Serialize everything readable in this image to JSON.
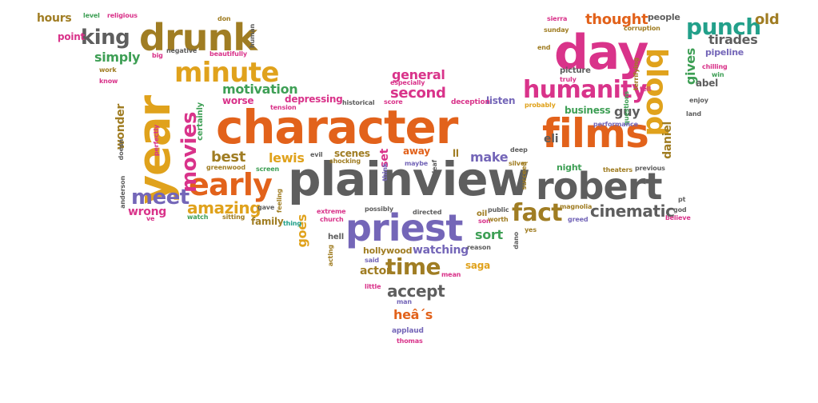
{
  "palette": {
    "orange": "#E2621B",
    "grey": "#5E5E5E",
    "purple": "#7466B8",
    "olive": "#A07D23",
    "magenta": "#D9338A",
    "green": "#3E9F55",
    "gold": "#E0A21C",
    "teal": "#22A08A"
  },
  "words": [
    {
      "text": "character",
      "color": "orange"
    },
    {
      "text": "plainview",
      "color": "grey"
    },
    {
      "text": "robert",
      "color": "grey"
    },
    {
      "text": "films",
      "color": "orange"
    },
    {
      "text": "day",
      "color": "magenta"
    },
    {
      "text": "priest",
      "color": "purple"
    },
    {
      "text": "year",
      "color": "gold"
    },
    {
      "text": "drunk",
      "color": "olive"
    },
    {
      "text": "blood",
      "color": "gold"
    },
    {
      "text": "minute",
      "color": "gold"
    },
    {
      "text": "early",
      "color": "orange"
    },
    {
      "text": "humanity",
      "color": "magenta"
    },
    {
      "text": "punch",
      "color": "teal"
    },
    {
      "text": "fact",
      "color": "olive"
    },
    {
      "text": "movies",
      "color": "magenta"
    },
    {
      "text": "king",
      "color": "grey"
    },
    {
      "text": "time",
      "color": "olive"
    },
    {
      "text": "meet",
      "color": "purple"
    },
    {
      "text": "thought",
      "color": "orange"
    },
    {
      "text": "amazing",
      "color": "gold"
    },
    {
      "text": "cinematic",
      "color": "grey"
    },
    {
      "text": "general",
      "color": "magenta"
    },
    {
      "text": "second",
      "color": "magenta"
    },
    {
      "text": "motivation",
      "color": "green"
    },
    {
      "text": "simply",
      "color": "green"
    },
    {
      "text": "best",
      "color": "olive"
    },
    {
      "text": "lewis",
      "color": "gold"
    },
    {
      "text": "gives",
      "color": "green"
    },
    {
      "text": "accept",
      "color": "grey"
    },
    {
      "text": "hours",
      "color": "olive"
    },
    {
      "text": "old",
      "color": "olive"
    },
    {
      "text": "tirades",
      "color": "grey"
    },
    {
      "text": "guy",
      "color": "grey"
    },
    {
      "text": "eli",
      "color": "grey"
    },
    {
      "text": "make",
      "color": "purple"
    },
    {
      "text": "wonder",
      "color": "olive"
    },
    {
      "text": "depressing",
      "color": "magenta"
    },
    {
      "text": "watching",
      "color": "purple"
    },
    {
      "text": "goes",
      "color": "gold"
    },
    {
      "text": "sort",
      "color": "green"
    },
    {
      "text": "wrong",
      "color": "magenta"
    },
    {
      "text": "heâ´s",
      "color": "orange"
    },
    {
      "text": "saga",
      "color": "gold"
    },
    {
      "text": "actor",
      "color": "olive"
    },
    {
      "text": "daniel",
      "color": "olive"
    },
    {
      "text": "business",
      "color": "green"
    },
    {
      "text": "family",
      "color": "olive"
    },
    {
      "text": "people",
      "color": "grey"
    },
    {
      "text": "pipeline",
      "color": "purple"
    },
    {
      "text": "picture",
      "color": "grey"
    },
    {
      "text": "abel",
      "color": "grey"
    },
    {
      "text": "set",
      "color": "magenta"
    },
    {
      "text": "away",
      "color": "orange"
    },
    {
      "text": "ll",
      "color": "olive"
    },
    {
      "text": "scenes",
      "color": "olive"
    },
    {
      "text": "listen",
      "color": "purple"
    },
    {
      "text": "point",
      "color": "magenta"
    },
    {
      "text": "worse",
      "color": "magenta"
    },
    {
      "text": "hollywood",
      "color": "olive"
    },
    {
      "text": "night",
      "color": "green"
    },
    {
      "text": "certainly",
      "color": "green"
    },
    {
      "text": "deception",
      "color": "magenta"
    },
    {
      "text": "historical",
      "color": "grey"
    },
    {
      "text": "score",
      "color": "magenta"
    },
    {
      "text": "especially",
      "color": "magenta"
    },
    {
      "text": "tension",
      "color": "magenta"
    },
    {
      "text": "evil",
      "color": "grey"
    },
    {
      "text": "shocking",
      "color": "olive"
    },
    {
      "text": "greenwood",
      "color": "olive"
    },
    {
      "text": "screen",
      "color": "green"
    },
    {
      "text": "feeling",
      "color": "olive"
    },
    {
      "text": "watch",
      "color": "green"
    },
    {
      "text": "sitting",
      "color": "olive"
    },
    {
      "text": "gave",
      "color": "grey"
    },
    {
      "text": "thing",
      "color": "teal"
    },
    {
      "text": "extreme",
      "color": "magenta"
    },
    {
      "text": "church",
      "color": "magenta"
    },
    {
      "text": "possibly",
      "color": "grey"
    },
    {
      "text": "directed",
      "color": "grey"
    },
    {
      "text": "hell",
      "color": "grey"
    },
    {
      "text": "oil",
      "color": "olive"
    },
    {
      "text": "public",
      "color": "grey"
    },
    {
      "text": "son",
      "color": "magenta"
    },
    {
      "text": "worth",
      "color": "olive"
    },
    {
      "text": "magnolia",
      "color": "olive"
    },
    {
      "text": "greed",
      "color": "purple"
    },
    {
      "text": "said",
      "color": "purple"
    },
    {
      "text": "mean",
      "color": "magenta"
    },
    {
      "text": "little",
      "color": "magenta"
    },
    {
      "text": "man",
      "color": "purple"
    },
    {
      "text": "applaud",
      "color": "purple"
    },
    {
      "text": "thomas",
      "color": "magenta"
    },
    {
      "text": "reason",
      "color": "grey"
    },
    {
      "text": "acting",
      "color": "olive"
    },
    {
      "text": "level",
      "color": "green"
    },
    {
      "text": "religious",
      "color": "magenta"
    },
    {
      "text": "don",
      "color": "olive"
    },
    {
      "text": "human",
      "color": "grey"
    },
    {
      "text": "beautifully",
      "color": "magenta"
    },
    {
      "text": "negative",
      "color": "grey"
    },
    {
      "text": "big",
      "color": "magenta"
    },
    {
      "text": "work",
      "color": "olive"
    },
    {
      "text": "know",
      "color": "magenta"
    },
    {
      "text": "doesn",
      "color": "grey"
    },
    {
      "text": "perfectly",
      "color": "magenta"
    },
    {
      "text": "anderson",
      "color": "grey"
    },
    {
      "text": "ve",
      "color": "magenta"
    },
    {
      "text": "sierra",
      "color": "magenta"
    },
    {
      "text": "sunday",
      "color": "olive"
    },
    {
      "text": "corruption",
      "color": "olive"
    },
    {
      "text": "end",
      "color": "olive"
    },
    {
      "text": "truly",
      "color": "magenta"
    },
    {
      "text": "probably",
      "color": "gold"
    },
    {
      "text": "terrifying",
      "color": "olive"
    },
    {
      "text": "tell",
      "color": "magenta"
    },
    {
      "text": "questions",
      "color": "green"
    },
    {
      "text": "chilling",
      "color": "magenta"
    },
    {
      "text": "win",
      "color": "green"
    },
    {
      "text": "enjoy",
      "color": "grey"
    },
    {
      "text": "land",
      "color": "grey"
    },
    {
      "text": "performance",
      "color": "purple"
    },
    {
      "text": "theaters",
      "color": "olive"
    },
    {
      "text": "previous",
      "color": "grey"
    },
    {
      "text": "deep",
      "color": "grey"
    },
    {
      "text": "silver",
      "color": "olive"
    },
    {
      "text": "succeed",
      "color": "olive"
    },
    {
      "text": "think",
      "color": "purple"
    },
    {
      "text": "maybe",
      "color": "purple"
    },
    {
      "text": "deaf",
      "color": "grey"
    },
    {
      "text": "pt",
      "color": "grey"
    },
    {
      "text": "god",
      "color": "grey"
    },
    {
      "text": "believe",
      "color": "magenta"
    },
    {
      "text": "dano",
      "color": "grey"
    },
    {
      "text": "yes",
      "color": "olive"
    }
  ]
}
